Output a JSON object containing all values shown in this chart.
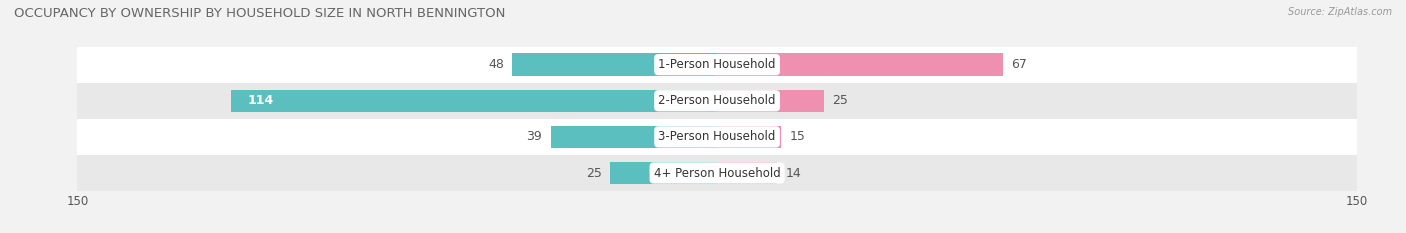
{
  "title": "OCCUPANCY BY OWNERSHIP BY HOUSEHOLD SIZE IN NORTH BENNINGTON",
  "source": "Source: ZipAtlas.com",
  "categories": [
    "1-Person Household",
    "2-Person Household",
    "3-Person Household",
    "4+ Person Household"
  ],
  "owner_values": [
    48,
    114,
    39,
    25
  ],
  "renter_values": [
    67,
    25,
    15,
    14
  ],
  "owner_color": "#5bbfc0",
  "renter_color": "#f090b0",
  "background_color": "#f2f2f2",
  "row_colors": [
    "#ffffff",
    "#e8e8e8",
    "#ffffff",
    "#e8e8e8"
  ],
  "xlim": 150,
  "label_fontsize": 9,
  "title_fontsize": 9.5,
  "source_fontsize": 7,
  "tick_fontsize": 8.5,
  "legend_fontsize": 8.5,
  "bar_height": 0.62
}
